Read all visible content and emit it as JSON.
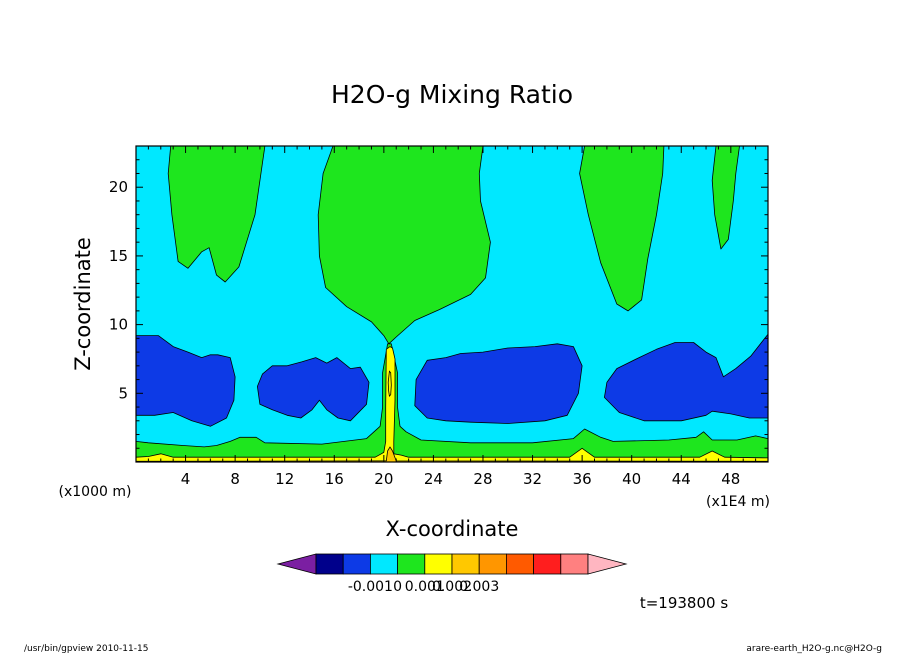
{
  "chart_data": {
    "type": "heatmap",
    "title": "H2O-g Mixing Ratio",
    "xlabel": "X-coordinate",
    "ylabel": "Z-coordinate",
    "x_unit": "(x1E4 m)",
    "y_unit": "(x1000 m)",
    "xlim": [
      0,
      51
    ],
    "ylim": [
      0,
      23
    ],
    "x_ticks": [
      4,
      8,
      12,
      16,
      20,
      24,
      28,
      32,
      36,
      40,
      44,
      48
    ],
    "y_ticks": [
      5,
      10,
      15,
      20
    ],
    "time_label": "t=193800 s",
    "colorbar": {
      "colors": [
        "#7b1fa2",
        "#00008b",
        "#0d3ae6",
        "#00e8ff",
        "#1ee61e",
        "#ffff00",
        "#ffc800",
        "#ff9600",
        "#ff5a00",
        "#ff1e1e",
        "#ff8080",
        "#ffb6c1"
      ],
      "tick_labels": [
        "-0.001",
        "0",
        "0.001",
        "0.002",
        "0.003"
      ]
    },
    "regions": [
      {
        "level": "green",
        "color": "#1ee61e",
        "polygon": [
          [
            2.8,
            23
          ],
          [
            2.6,
            21
          ],
          [
            2.9,
            18
          ],
          [
            3.4,
            14.6
          ],
          [
            4.2,
            14.1
          ],
          [
            5.3,
            15.3
          ],
          [
            5.9,
            15.6
          ],
          [
            6.5,
            13.6
          ],
          [
            7.2,
            13.1
          ],
          [
            8.3,
            14.2
          ],
          [
            9.6,
            18
          ],
          [
            10.4,
            23
          ]
        ]
      },
      {
        "level": "green",
        "color": "#1ee61e",
        "polygon": [
          [
            15.9,
            23
          ],
          [
            15.1,
            21
          ],
          [
            14.7,
            18
          ],
          [
            14.8,
            15
          ],
          [
            15.3,
            12.7
          ],
          [
            17,
            11.3
          ],
          [
            19,
            10.2
          ],
          [
            20,
            9.2
          ],
          [
            20.4,
            8.6
          ],
          [
            21,
            9.1
          ],
          [
            22.5,
            10.3
          ],
          [
            24.5,
            11.1
          ],
          [
            27,
            12.2
          ],
          [
            28.2,
            13.4
          ],
          [
            28.6,
            16
          ],
          [
            27.8,
            19
          ],
          [
            27.7,
            21
          ],
          [
            28,
            23
          ]
        ]
      },
      {
        "level": "green",
        "color": "#1ee61e",
        "polygon": [
          [
            36.2,
            23
          ],
          [
            35.8,
            21
          ],
          [
            36.5,
            18
          ],
          [
            37.5,
            14.5
          ],
          [
            38.8,
            11.5
          ],
          [
            39.7,
            11
          ],
          [
            40.8,
            11.8
          ],
          [
            41.3,
            14.8
          ],
          [
            42,
            18
          ],
          [
            42.5,
            21
          ],
          [
            42.6,
            23
          ]
        ]
      },
      {
        "level": "green",
        "color": "#1ee61e",
        "polygon": [
          [
            46.8,
            23
          ],
          [
            46.5,
            20.5
          ],
          [
            46.7,
            18
          ],
          [
            47.2,
            15.5
          ],
          [
            47.8,
            16.2
          ],
          [
            48.2,
            19
          ],
          [
            48.4,
            21
          ],
          [
            48.7,
            23
          ]
        ]
      },
      {
        "level": "blue",
        "color": "#0d3ae6",
        "polygon": [
          [
            0,
            9.2
          ],
          [
            1.8,
            9.2
          ],
          [
            3,
            8.4
          ],
          [
            4.2,
            8
          ],
          [
            5.3,
            7.6
          ],
          [
            6,
            7.8
          ],
          [
            6.6,
            7.8
          ],
          [
            7.6,
            7.6
          ],
          [
            8,
            6.2
          ],
          [
            7.9,
            4.5
          ],
          [
            7.3,
            3.2
          ],
          [
            6,
            2.6
          ],
          [
            4.5,
            3
          ],
          [
            3,
            3.6
          ],
          [
            1.5,
            3.4
          ],
          [
            0,
            3.4
          ]
        ]
      },
      {
        "level": "blue",
        "color": "#0d3ae6",
        "polygon": [
          [
            10.2,
            6.4
          ],
          [
            11,
            7
          ],
          [
            12.2,
            7
          ],
          [
            13.4,
            7.3
          ],
          [
            14.5,
            7.6
          ],
          [
            15.4,
            7.2
          ],
          [
            16.2,
            7.6
          ],
          [
            17.3,
            6.8
          ],
          [
            18.1,
            6.9
          ],
          [
            18.8,
            5.8
          ],
          [
            18.6,
            4.2
          ],
          [
            17.3,
            3
          ],
          [
            16.3,
            3.2
          ],
          [
            15.4,
            3.8
          ],
          [
            14.8,
            4.5
          ],
          [
            14.2,
            3.8
          ],
          [
            13.3,
            3.2
          ],
          [
            12.2,
            3.4
          ],
          [
            11,
            3.8
          ],
          [
            10,
            4.2
          ],
          [
            9.8,
            5.5
          ]
        ]
      },
      {
        "level": "blue",
        "color": "#0d3ae6",
        "polygon": [
          [
            22.6,
            6
          ],
          [
            23.5,
            7.4
          ],
          [
            25,
            7.6
          ],
          [
            26.2,
            7.9
          ],
          [
            28,
            8
          ],
          [
            30,
            8.3
          ],
          [
            32.2,
            8.4
          ],
          [
            34,
            8.6
          ],
          [
            35.3,
            8.4
          ],
          [
            36,
            7
          ],
          [
            35.7,
            5
          ],
          [
            34.8,
            3.4
          ],
          [
            33,
            3
          ],
          [
            30,
            2.8
          ],
          [
            27,
            2.9
          ],
          [
            25,
            3
          ],
          [
            23.5,
            3.2
          ],
          [
            22.5,
            4.1
          ]
        ]
      },
      {
        "level": "blue",
        "color": "#0d3ae6",
        "polygon": [
          [
            38,
            5.8
          ],
          [
            38.8,
            6.8
          ],
          [
            40.6,
            7.6
          ],
          [
            42,
            8.2
          ],
          [
            43.5,
            8.7
          ],
          [
            45,
            8.7
          ],
          [
            46,
            8
          ],
          [
            46.8,
            7.6
          ],
          [
            47.4,
            6.2
          ],
          [
            48.4,
            6.8
          ],
          [
            49.6,
            7.7
          ],
          [
            51,
            9.3
          ],
          [
            51,
            3.2
          ],
          [
            49.5,
            3.2
          ],
          [
            48,
            3.5
          ],
          [
            46.5,
            3.7
          ],
          [
            46,
            3.4
          ],
          [
            44,
            3
          ],
          [
            41,
            3
          ],
          [
            39,
            3.6
          ],
          [
            37.8,
            4.7
          ]
        ]
      },
      {
        "level": "green",
        "color": "#1ee61e",
        "polygon": [
          [
            0,
            0
          ],
          [
            51,
            0
          ],
          [
            51,
            1.7
          ],
          [
            50,
            1.9
          ],
          [
            48.5,
            1.6
          ],
          [
            46.5,
            1.6
          ],
          [
            45.8,
            2.2
          ],
          [
            45.2,
            1.8
          ],
          [
            43,
            1.6
          ],
          [
            38.5,
            1.5
          ],
          [
            37.5,
            1.8
          ],
          [
            36.2,
            2.4
          ],
          [
            35.3,
            1.7
          ],
          [
            32,
            1.4
          ],
          [
            27,
            1.4
          ],
          [
            23,
            1.6
          ],
          [
            21.8,
            2.2
          ],
          [
            21.3,
            2.6
          ],
          [
            21.1,
            4
          ],
          [
            21.1,
            6.5
          ],
          [
            20.6,
            8.6
          ],
          [
            20.3,
            8.6
          ],
          [
            19.9,
            6.5
          ],
          [
            19.9,
            4
          ],
          [
            19.7,
            2.6
          ],
          [
            18.6,
            1.7
          ],
          [
            15,
            1.3
          ],
          [
            10.4,
            1.4
          ],
          [
            9.7,
            1.8
          ],
          [
            8.4,
            1.8
          ],
          [
            7.6,
            1.5
          ],
          [
            6.5,
            1.2
          ],
          [
            5.5,
            1.1
          ],
          [
            3.8,
            1.2
          ],
          [
            1,
            1.4
          ],
          [
            0,
            1.5
          ]
        ]
      },
      {
        "level": "yellow",
        "color": "#ffff00",
        "polygon": [
          [
            0,
            0
          ],
          [
            51,
            0
          ],
          [
            51,
            0.3
          ],
          [
            47.5,
            0.35
          ],
          [
            46.5,
            0.8
          ],
          [
            45.5,
            0.35
          ],
          [
            37,
            0.35
          ],
          [
            36,
            1
          ],
          [
            35,
            0.35
          ],
          [
            22,
            0.35
          ],
          [
            21.4,
            0.5
          ],
          [
            20.8,
            0.6
          ],
          [
            20.8,
            1.5
          ],
          [
            20.9,
            4.5
          ],
          [
            20.9,
            7.5
          ],
          [
            20.7,
            8.3
          ],
          [
            20.5,
            8.4
          ],
          [
            20.2,
            8.2
          ],
          [
            20.15,
            4
          ],
          [
            20.15,
            1.5
          ],
          [
            20,
            0.7
          ],
          [
            19.3,
            0.35
          ],
          [
            3,
            0.35
          ],
          [
            2,
            0.6
          ],
          [
            1,
            0.4
          ],
          [
            0,
            0.35
          ]
        ]
      },
      {
        "level": "orange",
        "color": "#ffc800",
        "polygon": [
          [
            0,
            0
          ],
          [
            51,
            0
          ],
          [
            51,
            0.05
          ],
          [
            21,
            0.08
          ],
          [
            20.7,
            0.8
          ],
          [
            20.5,
            1.1
          ],
          [
            20.3,
            0.8
          ],
          [
            20.2,
            0.08
          ],
          [
            0,
            0.05
          ]
        ]
      }
    ],
    "contours": [
      {
        "closed": true,
        "points": [
          [
            20.35,
            5.8
          ],
          [
            20.45,
            6.6
          ],
          [
            20.55,
            6.5
          ],
          [
            20.6,
            5.6
          ],
          [
            20.55,
            4.9
          ],
          [
            20.45,
            4.8
          ],
          [
            20.38,
            5.2
          ]
        ]
      }
    ]
  },
  "footer": {
    "left": "/usr/bin/gpview   2010-11-15",
    "right": "arare-earth_H2O-g.nc@H2O-g"
  }
}
